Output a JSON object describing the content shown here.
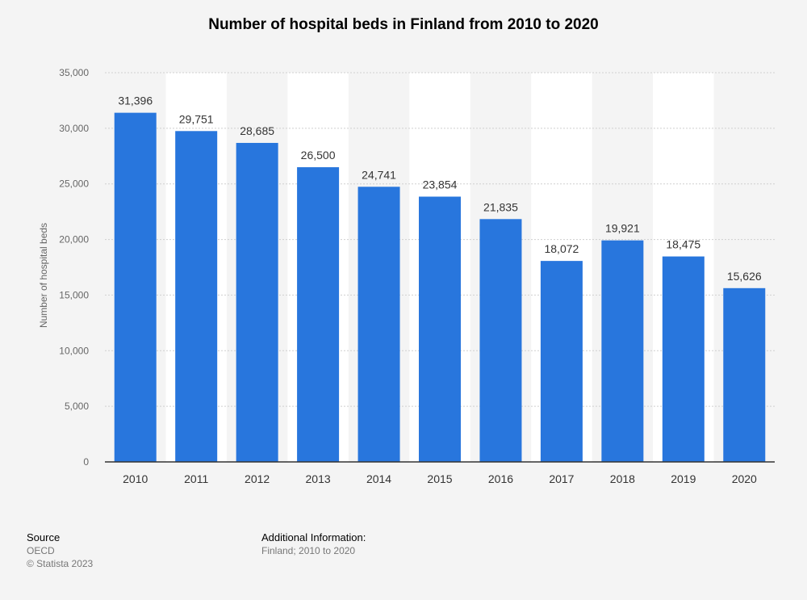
{
  "chart_data": {
    "type": "bar",
    "title": "Number of hospital beds in Finland from 2010 to 2020",
    "xlabel": "",
    "ylabel": "Number of hospital beds",
    "categories": [
      "2010",
      "2011",
      "2012",
      "2013",
      "2014",
      "2015",
      "2016",
      "2017",
      "2018",
      "2019",
      "2020"
    ],
    "values": [
      31396,
      29751,
      28685,
      26500,
      24741,
      23854,
      21835,
      18072,
      19921,
      18475,
      15626
    ],
    "value_labels": [
      "31,396",
      "29,751",
      "28,685",
      "26,500",
      "24,741",
      "23,854",
      "21,835",
      "18,072",
      "19,921",
      "18,475",
      "15,626"
    ],
    "ylim": [
      0,
      35000
    ],
    "yticks": [
      0,
      5000,
      10000,
      15000,
      20000,
      25000,
      30000,
      35000
    ],
    "ytick_labels": [
      "0",
      "5,000",
      "10,000",
      "15,000",
      "20,000",
      "25,000",
      "30,000",
      "35,000"
    ],
    "bar_color": "#2876dd",
    "grid": true
  },
  "footer": {
    "source_heading": "Source",
    "source": "OECD",
    "copyright": "© Statista 2023",
    "info_heading": "Additional Information:",
    "info": "Finland; 2010 to 2020"
  }
}
